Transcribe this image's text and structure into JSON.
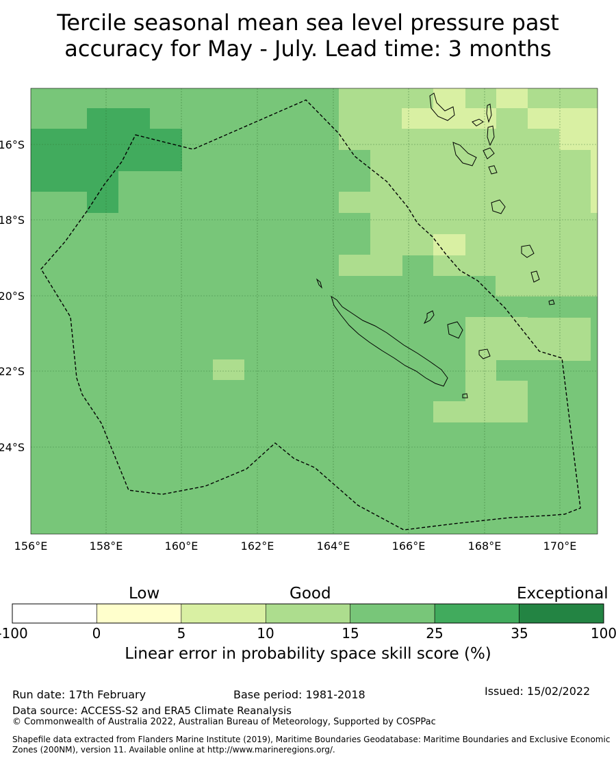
{
  "title": {
    "line1": "Tercile seasonal mean sea level pressure past",
    "line2": "accuracy for May - July. Lead time: 3 months"
  },
  "map": {
    "lon_labels": [
      "156°E",
      "158°E",
      "160°E",
      "162°E",
      "164°E",
      "166°E",
      "168°E",
      "170°E"
    ],
    "lat_labels": [
      "16°S",
      "18°S",
      "20°S",
      "22°S",
      "24°S"
    ],
    "gridlines": true,
    "boundary_style": "dashed"
  },
  "colorbar": {
    "categories": [
      "Low",
      "Good",
      "Exceptional"
    ],
    "ticks": [
      "-100",
      "0",
      "5",
      "10",
      "15",
      "25",
      "35",
      "100"
    ],
    "colors": [
      "#ffffff",
      "#ffffcc",
      "#d9f0a3",
      "#addd8e",
      "#78c679",
      "#41ab5d",
      "#238443"
    ],
    "label": "Linear error in probability space skill score (%)"
  },
  "footer": {
    "run_date": "Run date: 17th February",
    "base_period": "Base period: 1981-2018",
    "issued": "Issued: 15/02/2022",
    "data_source": "Data source: ACCESS-S2 and ERA5 Climate Reanalysis",
    "copyright": "© Commonwealth of Australia 2022, Australian Bureau of Meteorology, Supported by COSPPac",
    "shapefile": "Shapefile data extracted from Flanders Marine Institute (2019), Maritime Boundaries Geodatabase: Maritime Boundaries and Exclusive Economic Zones (200NM), version 11. Available online at http://www.marineregions.org/."
  }
}
